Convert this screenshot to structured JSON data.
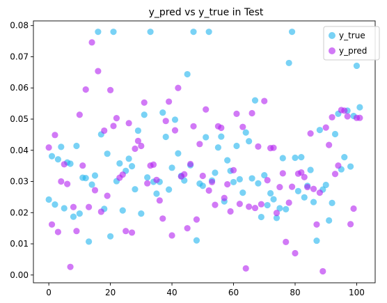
{
  "chart_data": {
    "type": "scatter",
    "title": "y_pred vs y_true in Test",
    "xlabel": "",
    "ylabel": "",
    "xlim": [
      -5,
      106
    ],
    "ylim": [
      -0.0025,
      0.0815
    ],
    "xticks": [
      0,
      20,
      40,
      60,
      80,
      100
    ],
    "yticks": [
      0.0,
      0.01,
      0.02,
      0.03,
      0.04,
      0.05,
      0.06,
      0.07,
      0.08
    ],
    "xtick_labels": [
      "0",
      "20",
      "40",
      "60",
      "80",
      "100"
    ],
    "ytick_labels": [
      "0.00",
      "0.01",
      "0.02",
      "0.03",
      "0.04",
      "0.05",
      "0.06",
      "0.07",
      "0.08"
    ],
    "grid": false,
    "legend_position": "top-right",
    "x": [
      0,
      1,
      2,
      3,
      4,
      5,
      6,
      7,
      8,
      9,
      10,
      11,
      12,
      13,
      14,
      15,
      16,
      17,
      18,
      19,
      20,
      21,
      22,
      23,
      24,
      25,
      26,
      27,
      28,
      29,
      30,
      31,
      32,
      33,
      34,
      35,
      36,
      37,
      38,
      39,
      40,
      41,
      42,
      43,
      44,
      45,
      46,
      47,
      48,
      49,
      50,
      51,
      52,
      53,
      54,
      55,
      56,
      57,
      58,
      59,
      60,
      61,
      62,
      63,
      64,
      65,
      66,
      67,
      68,
      69,
      70,
      71,
      72,
      73,
      74,
      75,
      76,
      77,
      78,
      79,
      80,
      81,
      82,
      83,
      84,
      85,
      86,
      87,
      88,
      89,
      90,
      91,
      92,
      93,
      94,
      95,
      96,
      97,
      98,
      99,
      100,
      101
    ],
    "series": [
      {
        "name": "y_true",
        "color": "#1fb4ee",
        "values": [
          0.0242,
          0.0381,
          0.0226,
          0.0371,
          0.0411,
          0.0214,
          0.0361,
          0.0357,
          0.0187,
          0.0414,
          0.0197,
          0.0312,
          0.0311,
          0.0107,
          0.029,
          0.0319,
          0.078,
          0.0451,
          0.0212,
          0.0389,
          0.0124,
          0.078,
          0.0301,
          0.0358,
          0.0207,
          0.0334,
          0.0373,
          0.0349,
          0.0275,
          0.0463,
          0.0197,
          0.0514,
          0.0313,
          0.078,
          0.0299,
          0.0261,
          0.0299,
          0.0521,
          0.0443,
          0.0274,
          0.0344,
          0.0498,
          0.039,
          0.0318,
          0.0303,
          0.0644,
          0.0352,
          0.078,
          0.0111,
          0.0293,
          0.0286,
          0.0442,
          0.078,
          0.0303,
          0.0328,
          0.0409,
          0.0444,
          0.0236,
          0.0368,
          0.0334,
          0.0298,
          0.0414,
          0.0307,
          0.0264,
          0.0457,
          0.0429,
          0.031,
          0.056,
          0.0294,
          0.0186,
          0.032,
          0.0224,
          0.0262,
          0.0243,
          0.0183,
          0.0214,
          0.0375,
          0.0211,
          0.068,
          0.078,
          0.0376,
          0.0269,
          0.0378,
          0.0249,
          0.0286,
          0.0337,
          0.0234,
          0.011,
          0.0465,
          0.0274,
          0.0289,
          0.0175,
          0.0231,
          0.0452,
          0.0517,
          0.0339,
          0.0378,
          0.0527,
          0.0348,
          0.051,
          0.0671,
          0.0538
        ]
      },
      {
        "name": "y_pred",
        "color": "#b21ff0",
        "values": [
          0.0409,
          0.0162,
          0.0449,
          0.0138,
          0.03,
          0.0355,
          0.0292,
          0.0026,
          0.0218,
          0.0141,
          0.0514,
          0.0351,
          0.0595,
          0.0218,
          0.0746,
          0.0272,
          0.0654,
          0.0203,
          0.0463,
          0.0254,
          0.0593,
          0.0478,
          0.0503,
          0.0312,
          0.0322,
          0.0141,
          0.0487,
          0.0136,
          0.0405,
          0.043,
          0.0414,
          0.0553,
          0.0294,
          0.0351,
          0.0354,
          0.0305,
          0.0239,
          0.0181,
          0.0494,
          0.0556,
          0.0127,
          0.0464,
          0.06,
          0.0316,
          0.0323,
          0.015,
          0.0356,
          0.0477,
          0.0178,
          0.042,
          0.0318,
          0.0531,
          0.0271,
          0.0298,
          0.0225,
          0.0477,
          0.0472,
          0.0247,
          0.0291,
          0.0204,
          0.0336,
          0.0517,
          0.0228,
          0.0475,
          0.0021,
          0.0219,
          0.0519,
          0.0215,
          0.0412,
          0.0227,
          0.0558,
          0.0304,
          0.0407,
          0.0408,
          0.0199,
          0.0282,
          0.0326,
          0.0106,
          0.0232,
          0.0283,
          0.007,
          0.0325,
          0.0329,
          0.0314,
          0.0282,
          0.0454,
          0.0276,
          0.0162,
          0.0264,
          0.0012,
          0.0473,
          0.0417,
          0.0506,
          0.0324,
          0.0351,
          0.0529,
          0.0527,
          0.0509,
          0.0163,
          0.0213,
          0.0504,
          0.0504
        ]
      }
    ]
  }
}
